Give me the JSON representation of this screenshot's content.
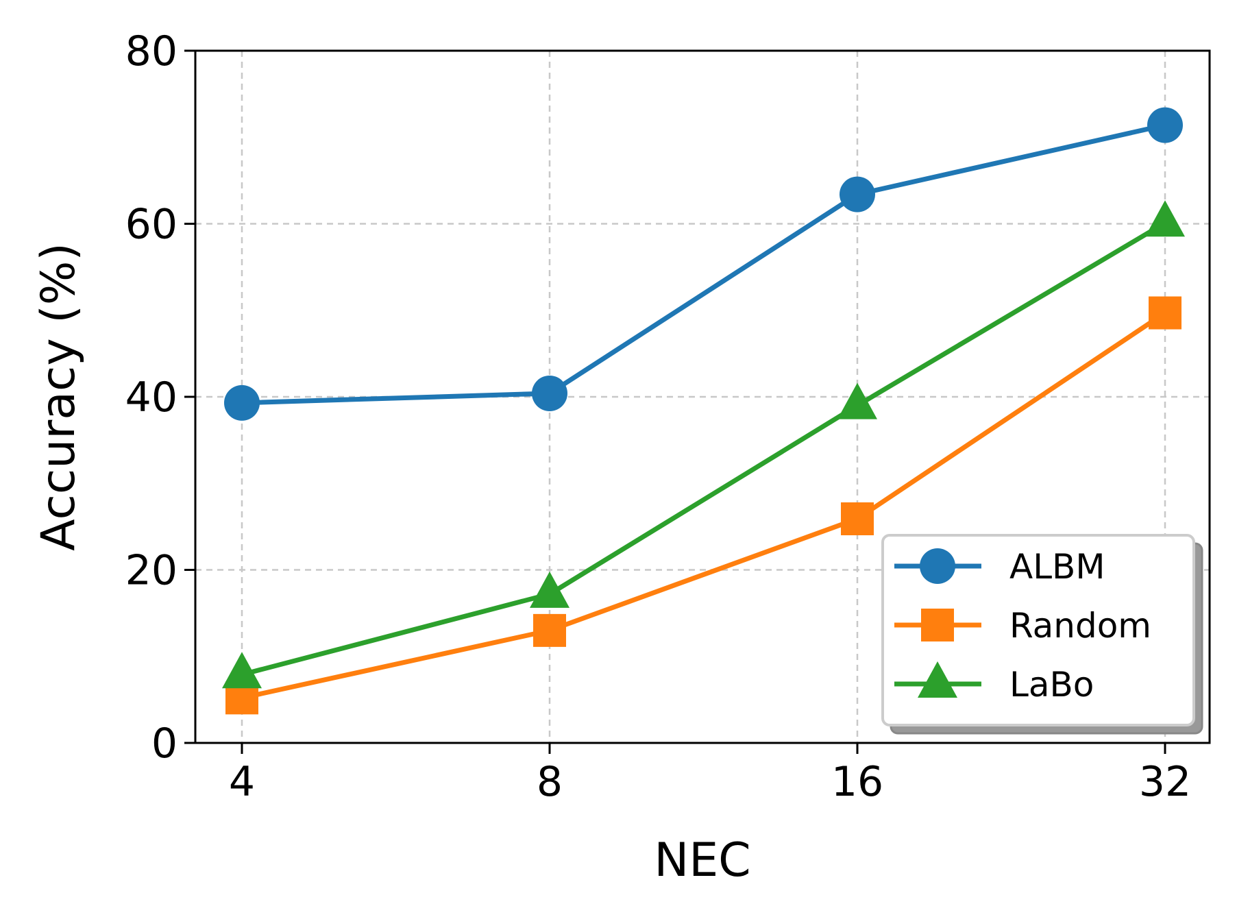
{
  "chart_data": {
    "type": "line",
    "xlabel": "NEC",
    "ylabel": "Accuracy (%)",
    "x": [
      4,
      8,
      16,
      32
    ],
    "x_ticks": [
      "4",
      "8",
      "16",
      "32"
    ],
    "y_ticks": [
      "0",
      "20",
      "40",
      "60",
      "80"
    ],
    "ylim": [
      0,
      80
    ],
    "x_scale": "log2",
    "grid": true,
    "legend_position": "lower-right",
    "series": [
      {
        "name": "ALBM",
        "values": [
          39.3,
          40.4,
          63.4,
          71.4
        ],
        "marker": "circle",
        "color": "#1f77b4"
      },
      {
        "name": "Random",
        "values": [
          5.2,
          13.0,
          25.9,
          49.7
        ],
        "marker": "square",
        "color": "#ff7f0e"
      },
      {
        "name": "LaBo",
        "values": [
          7.9,
          17.2,
          39.0,
          60.1
        ],
        "marker": "triangle",
        "color": "#2ca02c"
      }
    ]
  }
}
